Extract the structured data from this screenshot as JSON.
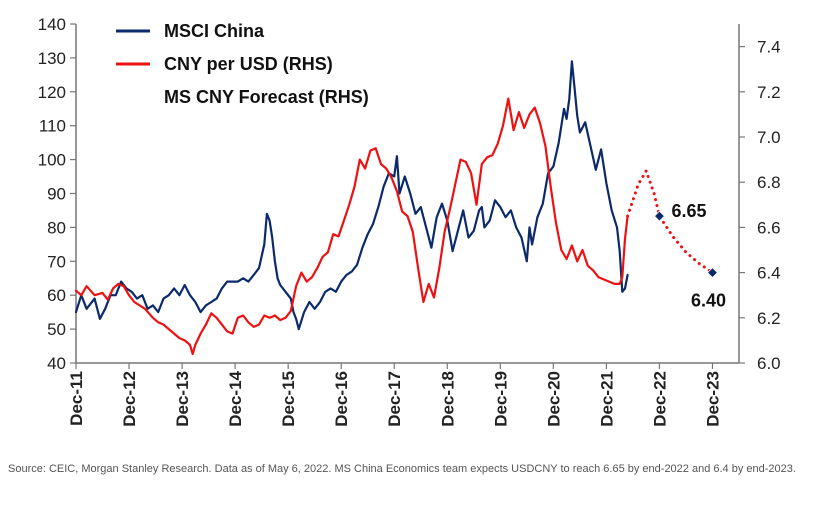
{
  "chart_data": {
    "type": "line",
    "title": "",
    "xlabel": "",
    "ylabel_left": "",
    "ylabel_right": "",
    "x_categories": [
      "Dec-11",
      "Dec-12",
      "Dec-13",
      "Dec-14",
      "Dec-15",
      "Dec-16",
      "Dec-17",
      "Dec-18",
      "Dec-19",
      "Dec-20",
      "Dec-21",
      "Dec-22",
      "Dec-23"
    ],
    "ylim_left": [
      40,
      140
    ],
    "yticks_left": [
      40,
      50,
      60,
      70,
      80,
      90,
      100,
      110,
      120,
      130,
      140
    ],
    "ylim_right": [
      6.0,
      7.5
    ],
    "yticks_right": [
      "6.0",
      "6.2",
      "6.4",
      "6.6",
      "6.8",
      "7.0",
      "7.2",
      "7.4"
    ],
    "grid": false,
    "legend_position": "top-left",
    "series": [
      {
        "name": "MSCI China",
        "axis": "left",
        "color": "#0b2a6b",
        "style": "solid",
        "points": [
          [
            0.0,
            55
          ],
          [
            0.1,
            60
          ],
          [
            0.2,
            56
          ],
          [
            0.35,
            59
          ],
          [
            0.45,
            53
          ],
          [
            0.55,
            56
          ],
          [
            0.65,
            60
          ],
          [
            0.75,
            60
          ],
          [
            0.85,
            64
          ],
          [
            0.95,
            62
          ],
          [
            1.05,
            61
          ],
          [
            1.15,
            59
          ],
          [
            1.25,
            60
          ],
          [
            1.35,
            56
          ],
          [
            1.45,
            57
          ],
          [
            1.55,
            55
          ],
          [
            1.65,
            59
          ],
          [
            1.75,
            60
          ],
          [
            1.85,
            62
          ],
          [
            1.95,
            60
          ],
          [
            2.05,
            63
          ],
          [
            2.15,
            60
          ],
          [
            2.25,
            58
          ],
          [
            2.35,
            55
          ],
          [
            2.45,
            57
          ],
          [
            2.55,
            58
          ],
          [
            2.65,
            59
          ],
          [
            2.75,
            62
          ],
          [
            2.85,
            64
          ],
          [
            2.95,
            64
          ],
          [
            3.05,
            64
          ],
          [
            3.15,
            65
          ],
          [
            3.25,
            64
          ],
          [
            3.35,
            66
          ],
          [
            3.45,
            68
          ],
          [
            3.55,
            75
          ],
          [
            3.6,
            84
          ],
          [
            3.65,
            82
          ],
          [
            3.7,
            77
          ],
          [
            3.75,
            70
          ],
          [
            3.8,
            65
          ],
          [
            3.85,
            63
          ],
          [
            3.95,
            61
          ],
          [
            4.05,
            59
          ],
          [
            4.1,
            55
          ],
          [
            4.15,
            53
          ],
          [
            4.2,
            50
          ],
          [
            4.3,
            55
          ],
          [
            4.4,
            58
          ],
          [
            4.5,
            56
          ],
          [
            4.6,
            58
          ],
          [
            4.7,
            61
          ],
          [
            4.8,
            62
          ],
          [
            4.9,
            61
          ],
          [
            5.0,
            64
          ],
          [
            5.1,
            66
          ],
          [
            5.2,
            67
          ],
          [
            5.3,
            69
          ],
          [
            5.4,
            74
          ],
          [
            5.5,
            78
          ],
          [
            5.6,
            81
          ],
          [
            5.7,
            86
          ],
          [
            5.8,
            92
          ],
          [
            5.9,
            96
          ],
          [
            6.0,
            95
          ],
          [
            6.05,
            101
          ],
          [
            6.1,
            90
          ],
          [
            6.2,
            95
          ],
          [
            6.3,
            90
          ],
          [
            6.4,
            84
          ],
          [
            6.5,
            86
          ],
          [
            6.6,
            80
          ],
          [
            6.7,
            74
          ],
          [
            6.8,
            83
          ],
          [
            6.9,
            87
          ],
          [
            7.0,
            82
          ],
          [
            7.1,
            73
          ],
          [
            7.2,
            79
          ],
          [
            7.3,
            85
          ],
          [
            7.4,
            77
          ],
          [
            7.5,
            79
          ],
          [
            7.6,
            85
          ],
          [
            7.65,
            86
          ],
          [
            7.7,
            80
          ],
          [
            7.8,
            82
          ],
          [
            7.9,
            88
          ],
          [
            8.0,
            86
          ],
          [
            8.1,
            83
          ],
          [
            8.2,
            85
          ],
          [
            8.3,
            80
          ],
          [
            8.4,
            77
          ],
          [
            8.5,
            70
          ],
          [
            8.55,
            80
          ],
          [
            8.6,
            75
          ],
          [
            8.7,
            83
          ],
          [
            8.8,
            87
          ],
          [
            8.9,
            96
          ],
          [
            9.0,
            98
          ],
          [
            9.1,
            105
          ],
          [
            9.2,
            115
          ],
          [
            9.25,
            112
          ],
          [
            9.3,
            118
          ],
          [
            9.35,
            129
          ],
          [
            9.4,
            121
          ],
          [
            9.45,
            113
          ],
          [
            9.5,
            108
          ],
          [
            9.6,
            111
          ],
          [
            9.7,
            104
          ],
          [
            9.8,
            97
          ],
          [
            9.9,
            103
          ],
          [
            10.0,
            93
          ],
          [
            10.1,
            85
          ],
          [
            10.2,
            80
          ],
          [
            10.25,
            73
          ],
          [
            10.3,
            61
          ],
          [
            10.35,
            62
          ],
          [
            10.4,
            66
          ]
        ]
      },
      {
        "name": "CNY per USD (RHS)",
        "axis": "right",
        "color": "#ee1111",
        "style": "solid",
        "points": [
          [
            0.0,
            6.32
          ],
          [
            0.1,
            6.3
          ],
          [
            0.2,
            6.34
          ],
          [
            0.35,
            6.3
          ],
          [
            0.5,
            6.31
          ],
          [
            0.6,
            6.28
          ],
          [
            0.7,
            6.33
          ],
          [
            0.8,
            6.35
          ],
          [
            0.9,
            6.34
          ],
          [
            1.0,
            6.3
          ],
          [
            1.1,
            6.27
          ],
          [
            1.3,
            6.24
          ],
          [
            1.45,
            6.2
          ],
          [
            1.55,
            6.18
          ],
          [
            1.65,
            6.17
          ],
          [
            1.75,
            6.15
          ],
          [
            1.85,
            6.13
          ],
          [
            1.95,
            6.11
          ],
          [
            2.05,
            6.1
          ],
          [
            2.15,
            6.08
          ],
          [
            2.2,
            6.04
          ],
          [
            2.25,
            6.08
          ],
          [
            2.35,
            6.13
          ],
          [
            2.45,
            6.17
          ],
          [
            2.55,
            6.22
          ],
          [
            2.65,
            6.2
          ],
          [
            2.75,
            6.17
          ],
          [
            2.85,
            6.14
          ],
          [
            2.95,
            6.13
          ],
          [
            3.05,
            6.2
          ],
          [
            3.15,
            6.21
          ],
          [
            3.25,
            6.18
          ],
          [
            3.35,
            6.16
          ],
          [
            3.45,
            6.17
          ],
          [
            3.55,
            6.21
          ],
          [
            3.65,
            6.2
          ],
          [
            3.75,
            6.21
          ],
          [
            3.85,
            6.19
          ],
          [
            3.95,
            6.2
          ],
          [
            4.05,
            6.23
          ],
          [
            4.15,
            6.34
          ],
          [
            4.25,
            6.4
          ],
          [
            4.35,
            6.36
          ],
          [
            4.45,
            6.38
          ],
          [
            4.55,
            6.42
          ],
          [
            4.65,
            6.47
          ],
          [
            4.75,
            6.49
          ],
          [
            4.85,
            6.57
          ],
          [
            4.95,
            6.56
          ],
          [
            5.05,
            6.63
          ],
          [
            5.15,
            6.7
          ],
          [
            5.25,
            6.78
          ],
          [
            5.35,
            6.9
          ],
          [
            5.45,
            6.86
          ],
          [
            5.55,
            6.94
          ],
          [
            5.65,
            6.95
          ],
          [
            5.75,
            6.88
          ],
          [
            5.85,
            6.86
          ],
          [
            5.95,
            6.82
          ],
          [
            6.05,
            6.76
          ],
          [
            6.15,
            6.67
          ],
          [
            6.25,
            6.65
          ],
          [
            6.35,
            6.58
          ],
          [
            6.45,
            6.42
          ],
          [
            6.55,
            6.27
          ],
          [
            6.65,
            6.35
          ],
          [
            6.75,
            6.29
          ],
          [
            6.85,
            6.42
          ],
          [
            6.95,
            6.58
          ],
          [
            7.05,
            6.68
          ],
          [
            7.15,
            6.79
          ],
          [
            7.25,
            6.9
          ],
          [
            7.35,
            6.89
          ],
          [
            7.45,
            6.84
          ],
          [
            7.55,
            6.7
          ],
          [
            7.65,
            6.88
          ],
          [
            7.75,
            6.91
          ],
          [
            7.85,
            6.92
          ],
          [
            7.95,
            6.97
          ],
          [
            8.05,
            7.05
          ],
          [
            8.15,
            7.17
          ],
          [
            8.25,
            7.03
          ],
          [
            8.35,
            7.11
          ],
          [
            8.45,
            7.04
          ],
          [
            8.55,
            7.1
          ],
          [
            8.65,
            7.13
          ],
          [
            8.75,
            7.06
          ],
          [
            8.85,
            6.96
          ],
          [
            8.95,
            6.78
          ],
          [
            9.05,
            6.62
          ],
          [
            9.15,
            6.5
          ],
          [
            9.25,
            6.46
          ],
          [
            9.35,
            6.52
          ],
          [
            9.45,
            6.45
          ],
          [
            9.55,
            6.5
          ],
          [
            9.65,
            6.43
          ],
          [
            9.75,
            6.41
          ],
          [
            9.85,
            6.38
          ],
          [
            9.95,
            6.37
          ],
          [
            10.05,
            6.36
          ],
          [
            10.15,
            6.35
          ],
          [
            10.25,
            6.35
          ],
          [
            10.3,
            6.38
          ],
          [
            10.35,
            6.55
          ],
          [
            10.4,
            6.65
          ]
        ]
      },
      {
        "name": "MS CNY Forecast (RHS)",
        "axis": "right",
        "color": "#ee1111",
        "style": "dotted",
        "points": [
          [
            10.4,
            6.65
          ],
          [
            10.6,
            6.79
          ],
          [
            10.75,
            6.85
          ],
          [
            10.9,
            6.75
          ],
          [
            11.0,
            6.65
          ],
          [
            11.25,
            6.56
          ],
          [
            11.5,
            6.49
          ],
          [
            11.75,
            6.44
          ],
          [
            12.0,
            6.4
          ]
        ]
      }
    ],
    "markers": [
      {
        "x": 11,
        "value": 6.65,
        "axis": "right",
        "label": "6.65"
      },
      {
        "x": 12,
        "value": 6.4,
        "axis": "right",
        "label": "6.40"
      }
    ]
  },
  "source_note": "Source: CEIC, Morgan Stanley Research. Data as of May 6, 2022. MS China Economics team expects USDCNY to reach 6.65 by end-2022 and 6.4 by end-2023."
}
